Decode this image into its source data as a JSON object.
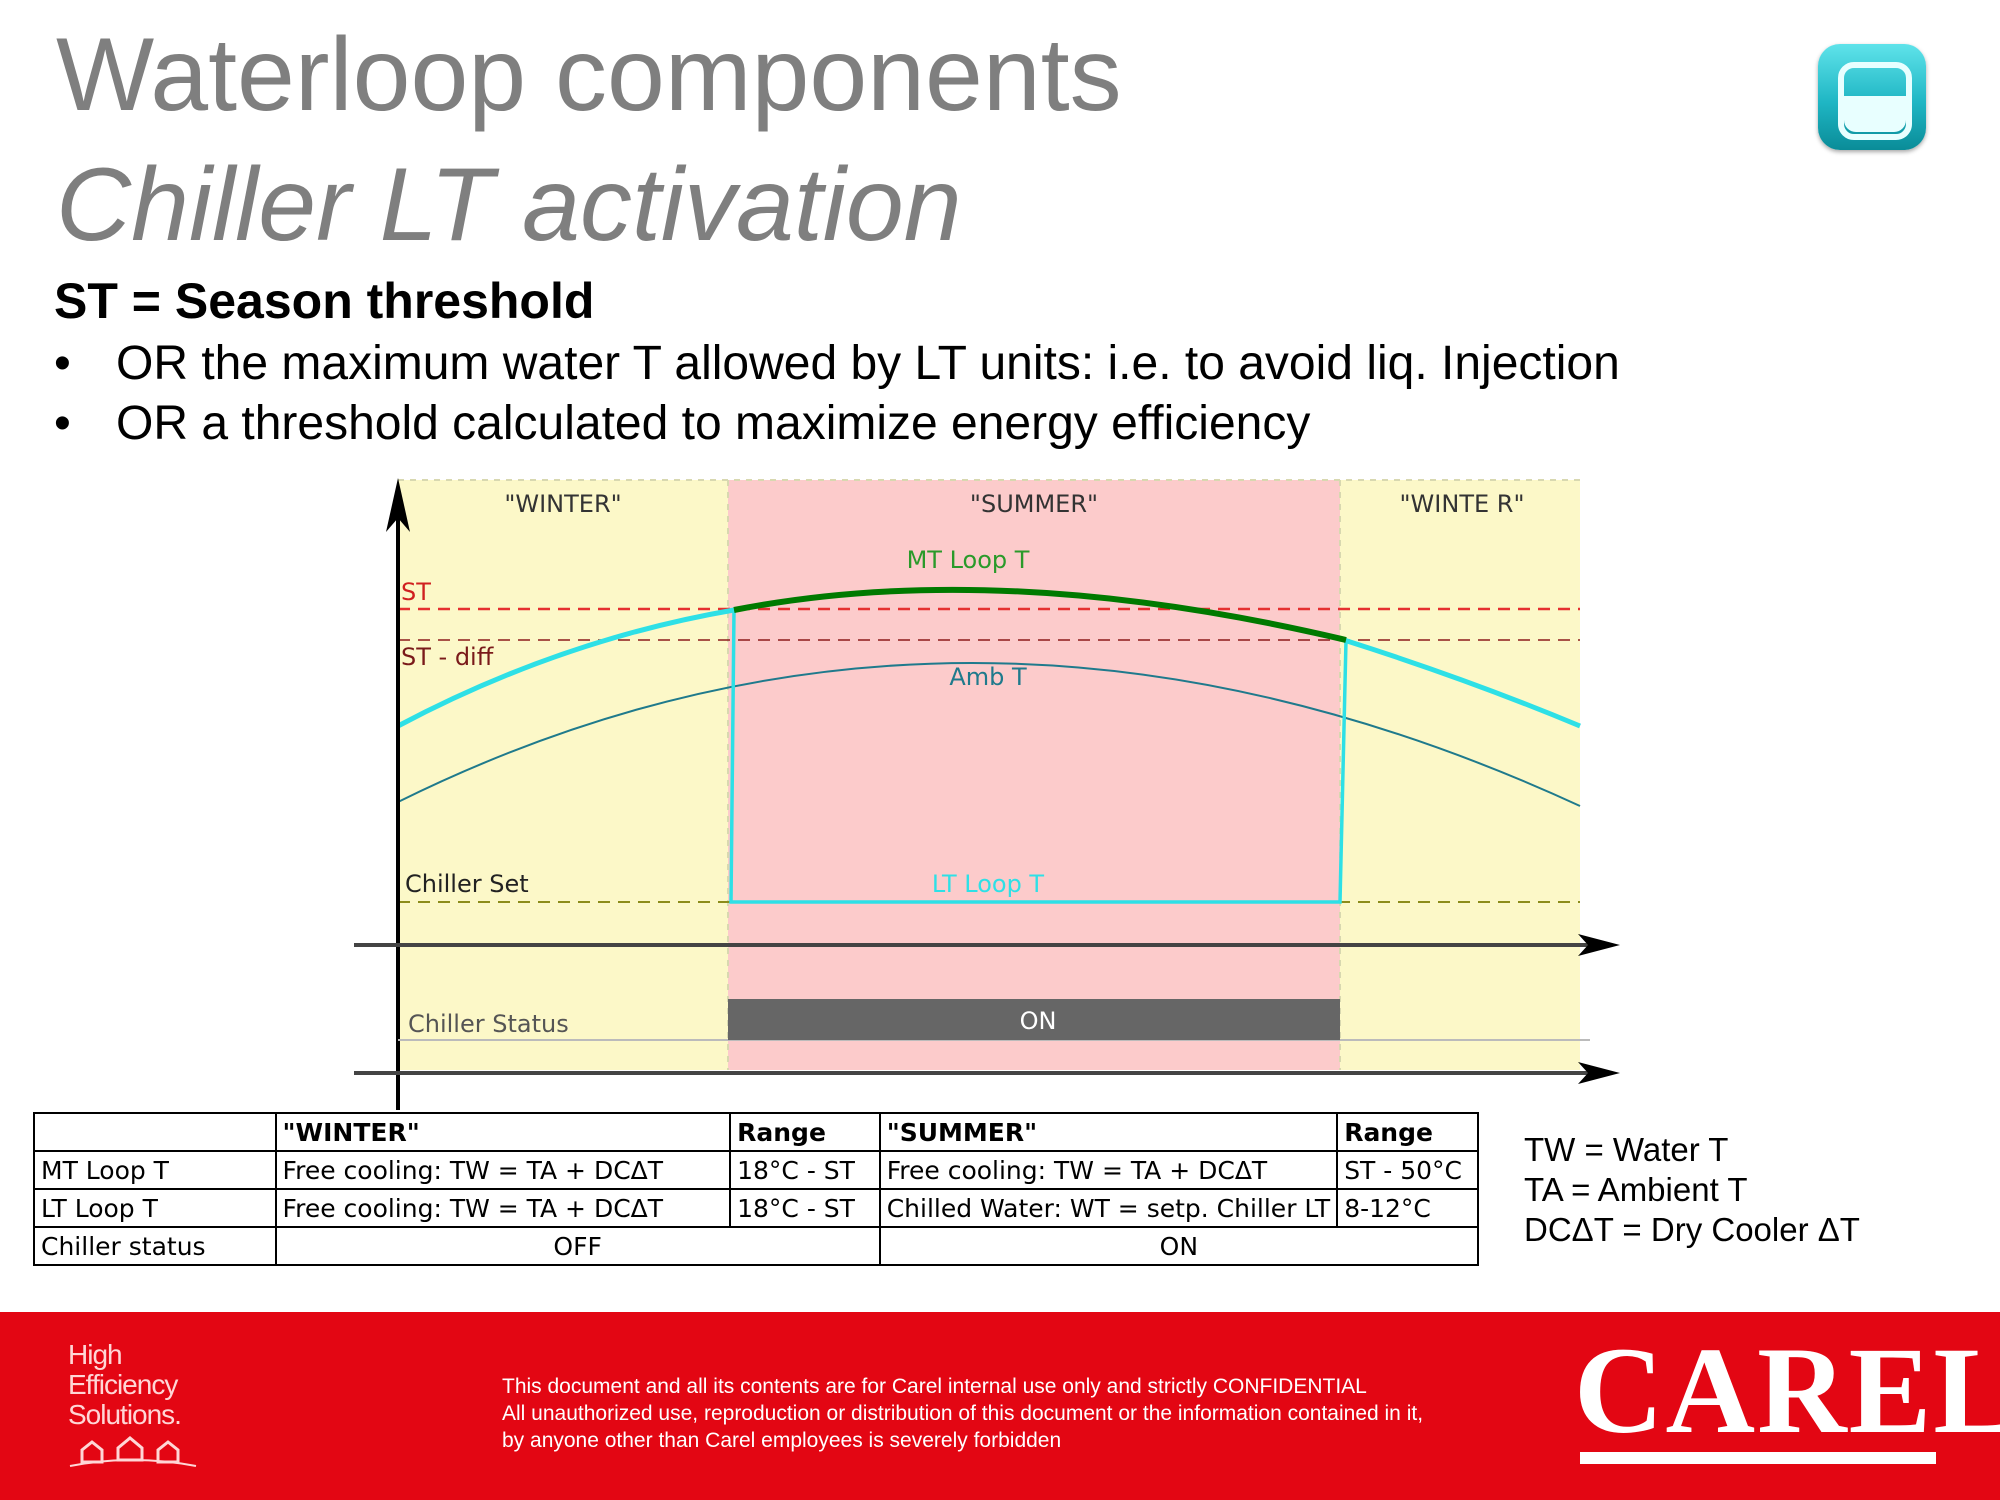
{
  "header": {
    "title": "Waterloop components",
    "subtitle": "Chiller LT activation",
    "app_icon": "rotate-refresh-icon"
  },
  "intro": {
    "heading": "ST = Season threshold",
    "bullets": [
      "OR the maximum water T allowed by LT units: i.e. to avoid liq. Injection",
      "OR a threshold calculated to maximize energy efficiency"
    ],
    "bullet_glyph": "•"
  },
  "diagram": {
    "zones": [
      {
        "label": "\"WINTER\"",
        "color": "#fcf8c8"
      },
      {
        "label": "\"SUMMER\"",
        "color": "#fccbcb"
      },
      {
        "label": "\"WINTE R\"",
        "color": "#fcf8c8"
      }
    ],
    "levels": {
      "st": "ST",
      "st_diff": "ST - diff",
      "chiller_set": "Chiller Set"
    },
    "curves": {
      "mt_loop": "MT Loop T",
      "amb": "Amb T",
      "lt_loop": "LT Loop T"
    },
    "status": {
      "label": "Chiller Status",
      "on_text": "ON"
    },
    "colors": {
      "mt_loop": "#007a00",
      "lt_loop": "#2ee0e6",
      "amb": "#1f7a8c",
      "st_line": "#e53030",
      "st_diff_line": "#8c1a1a",
      "chiller_set_line": "#8c8c1a",
      "status_bar": "#666666"
    }
  },
  "table": {
    "header": [
      "",
      "\"WINTER\"",
      "Range",
      "\"SUMMER\"",
      "Range"
    ],
    "rows": [
      {
        "label": "MT Loop T",
        "winter": "Free cooling: TW = TA + DCΔT",
        "winter_range": "18°C - ST",
        "summer": "Free cooling: TW = TA + DCΔT",
        "summer_range": "ST - 50°C"
      },
      {
        "label": "LT Loop T",
        "winter": "Free cooling: TW = TA + DCΔT",
        "winter_range": "18°C - ST",
        "summer": "Chilled Water: WT = setp. Chiller LT",
        "summer_range": "8-12°C"
      }
    ],
    "status_row": {
      "label": "Chiller status",
      "winter": "OFF",
      "summer": "ON"
    }
  },
  "legend": [
    "TW = Water T",
    "TA = Ambient T",
    "DCΔT = Dry Cooler ΔT"
  ],
  "footer": {
    "brand_lines": [
      "High",
      "Efficiency",
      "Solutions."
    ],
    "confidential": [
      "This document and all its contents are for Carel internal use only and strictly  CONFIDENTIAL",
      "All unauthorized use, reproduction or distribution of this document or the information contained in it,",
      "by anyone other than Carel employees is severely forbidden"
    ],
    "logo": "CAREL"
  }
}
